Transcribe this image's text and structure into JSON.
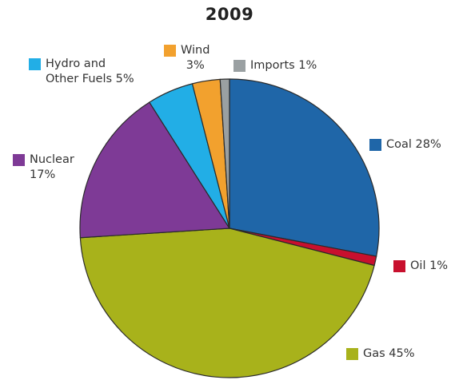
{
  "chart_data": {
    "type": "pie",
    "title": "2009",
    "slices": [
      {
        "key": "coal",
        "label": "Coal 28%",
        "value": 28,
        "color": "#1f66a8"
      },
      {
        "key": "oil",
        "label": "Oil 1%",
        "value": 1,
        "color": "#c8102e"
      },
      {
        "key": "gas",
        "label": "Gas 45%",
        "value": 45,
        "color": "#a8b21b"
      },
      {
        "key": "nuclear",
        "label": "Nuclear\n17%",
        "value": 17,
        "color": "#7e3a96"
      },
      {
        "key": "hydro",
        "label": "Hydro and\nOther Fuels 5%",
        "value": 5,
        "color": "#22aee6"
      },
      {
        "key": "wind",
        "label": "Wind\n3%",
        "value": 3,
        "color": "#f2a12e"
      },
      {
        "key": "imports",
        "label": "Imports 1%",
        "value": 1,
        "color": "#9aa0a2"
      }
    ],
    "start": "12 o'clock",
    "direction": "clockwise",
    "legend": "labels placed around the pie next to each slice"
  }
}
